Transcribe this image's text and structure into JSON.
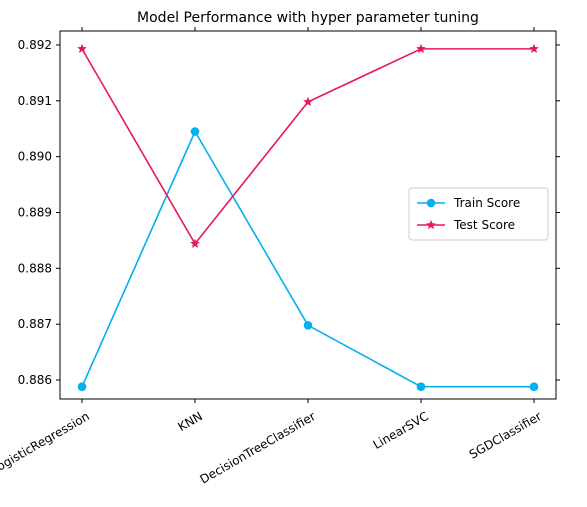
{
  "chart_data": {
    "type": "line",
    "title": "Model Performance with hyper parameter tuning",
    "xlabel": "",
    "ylabel": "",
    "categories": [
      "LogisticRegression",
      "KNN",
      "DecisionTreeClassifier",
      "LinearSVC",
      "SGDClassifier"
    ],
    "series": [
      {
        "name": "Train Score",
        "values": [
          0.88588,
          0.89045,
          0.88698,
          0.88588,
          0.88588
        ],
        "color": "#00b0f0",
        "marker": "circle"
      },
      {
        "name": "Test Score",
        "values": [
          0.89193,
          0.88844,
          0.89098,
          0.89193,
          0.89193
        ],
        "color": "#e8175d",
        "marker": "star"
      }
    ],
    "y_ticks": [
      "0.886",
      "0.887",
      "0.888",
      "0.889",
      "0.890",
      "0.891",
      "0.892"
    ],
    "ylim": [
      0.88566,
      0.89225
    ],
    "grid": false,
    "legend_position": "center-right"
  }
}
